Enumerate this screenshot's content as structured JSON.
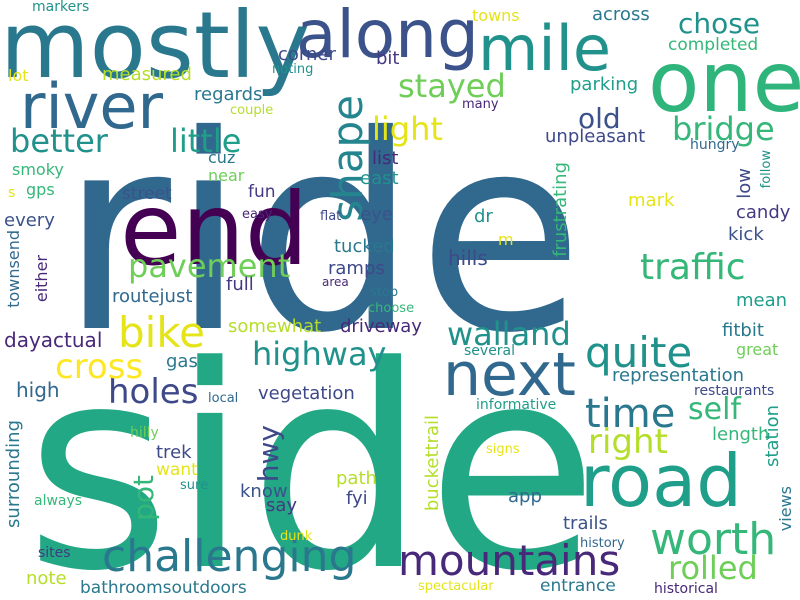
{
  "words": [
    {
      "text": "ride",
      "color": "#31688e"
    },
    {
      "text": "side",
      "color": "#22a884"
    },
    {
      "text": "end",
      "color": "#440154"
    },
    {
      "text": "mostly",
      "color": "#2a788e"
    },
    {
      "text": "one",
      "color": "#2fb47c"
    },
    {
      "text": "along",
      "color": "#3b528b"
    },
    {
      "text": "mile",
      "color": "#21918c"
    },
    {
      "text": "river",
      "color": "#31688e"
    },
    {
      "text": "road",
      "color": "#1f9e89"
    },
    {
      "text": "next",
      "color": "#31688e"
    },
    {
      "text": "challenging",
      "color": "#2a788e"
    },
    {
      "text": "mountains",
      "color": "#482878"
    },
    {
      "text": "worth",
      "color": "#35b779"
    },
    {
      "text": "bike",
      "color": "#e5e419"
    },
    {
      "text": "quite",
      "color": "#21918c"
    },
    {
      "text": "shape",
      "color": "#25858e"
    },
    {
      "text": "time",
      "color": "#2a788e"
    },
    {
      "text": "traffic",
      "color": "#35b779"
    },
    {
      "text": "pavement",
      "color": "#6ece58"
    },
    {
      "text": "highway",
      "color": "#21918c"
    },
    {
      "text": "walland",
      "color": "#21918c"
    },
    {
      "text": "holes",
      "color": "#3e4989"
    },
    {
      "text": "cross",
      "color": "#fde725"
    },
    {
      "text": "right",
      "color": "#b5de2b"
    },
    {
      "text": "self",
      "color": "#35b779"
    },
    {
      "text": "rolled",
      "color": "#6ece58"
    },
    {
      "text": "better",
      "color": "#21918c"
    },
    {
      "text": "little",
      "color": "#1f9e89"
    },
    {
      "text": "stayed",
      "color": "#6ece58"
    },
    {
      "text": "light",
      "color": "#e5e419"
    },
    {
      "text": "bridge",
      "color": "#35b779"
    },
    {
      "text": "chose",
      "color": "#21918c"
    },
    {
      "text": "old",
      "color": "#3b528b"
    },
    {
      "text": "hwy",
      "color": "#3e4989"
    },
    {
      "text": "pot",
      "color": "#35b779"
    },
    {
      "text": "measured",
      "color": "#b5de2b"
    },
    {
      "text": "regards",
      "color": "#2a788e"
    },
    {
      "text": "corner",
      "color": "#3e4989"
    },
    {
      "text": "bit",
      "color": "#443983"
    },
    {
      "text": "towns",
      "color": "#e5e419"
    },
    {
      "text": "across",
      "color": "#2a788e"
    },
    {
      "text": "completed",
      "color": "#35b779"
    },
    {
      "text": "parking",
      "color": "#1f9e89"
    },
    {
      "text": "many",
      "color": "#482878"
    },
    {
      "text": "unpleasant",
      "color": "#3e4989"
    },
    {
      "text": "hungry",
      "color": "#31688e"
    },
    {
      "text": "couple",
      "color": "#b5de2b"
    },
    {
      "text": "noting",
      "color": "#21918c"
    },
    {
      "text": "markers",
      "color": "#21918c"
    },
    {
      "text": "lot",
      "color": "#e5e419"
    },
    {
      "text": "smoky",
      "color": "#35b779"
    },
    {
      "text": "gps",
      "color": "#35b779"
    },
    {
      "text": "s",
      "color": "#e5e419"
    },
    {
      "text": "every",
      "color": "#3b528b"
    },
    {
      "text": "townsend",
      "color": "#31688e"
    },
    {
      "text": "either",
      "color": "#482878"
    },
    {
      "text": "street",
      "color": "#3b528b"
    },
    {
      "text": "cuz",
      "color": "#2a788e"
    },
    {
      "text": "near",
      "color": "#6ece58"
    },
    {
      "text": "fun",
      "color": "#443983"
    },
    {
      "text": "easy",
      "color": "#482878"
    },
    {
      "text": "flat",
      "color": "#3e4989"
    },
    {
      "text": "eye",
      "color": "#3b528b"
    },
    {
      "text": "list",
      "color": "#482878"
    },
    {
      "text": "east",
      "color": "#21918c"
    },
    {
      "text": "frustrating",
      "color": "#35b779"
    },
    {
      "text": "mark",
      "color": "#e5e419"
    },
    {
      "text": "low",
      "color": "#3e4989"
    },
    {
      "text": "follow",
      "color": "#21918c"
    },
    {
      "text": "candy",
      "color": "#443983"
    },
    {
      "text": "kick",
      "color": "#3b528b"
    },
    {
      "text": "dr",
      "color": "#21918c"
    },
    {
      "text": "m",
      "color": "#e5e419"
    },
    {
      "text": "hills",
      "color": "#3e4989"
    },
    {
      "text": "tucked",
      "color": "#2a788e"
    },
    {
      "text": "ramps",
      "color": "#3e4989"
    },
    {
      "text": "routejust",
      "color": "#31688e"
    },
    {
      "text": "full",
      "color": "#443983"
    },
    {
      "text": "area",
      "color": "#482878"
    },
    {
      "text": "stop",
      "color": "#2a788e"
    },
    {
      "text": "choose",
      "color": "#35b779"
    },
    {
      "text": "mean",
      "color": "#1f9e89"
    },
    {
      "text": "fitbit",
      "color": "#2a788e"
    },
    {
      "text": "great",
      "color": "#6ece58"
    },
    {
      "text": "somewhat",
      "color": "#b5de2b"
    },
    {
      "text": "driveway",
      "color": "#482878"
    },
    {
      "text": "dayactual",
      "color": "#482878"
    },
    {
      "text": "gas",
      "color": "#2a788e"
    },
    {
      "text": "several",
      "color": "#21918c"
    },
    {
      "text": "representation",
      "color": "#2a788e"
    },
    {
      "text": "restaurants",
      "color": "#3e4989"
    },
    {
      "text": "high",
      "color": "#31688e"
    },
    {
      "text": "vegetation",
      "color": "#3e4989"
    },
    {
      "text": "local",
      "color": "#31688e"
    },
    {
      "text": "informative",
      "color": "#1f9e89"
    },
    {
      "text": "buckettrail",
      "color": "#b5de2b"
    },
    {
      "text": "length",
      "color": "#35b779"
    },
    {
      "text": "station",
      "color": "#1f9e89"
    },
    {
      "text": "surrounding",
      "color": "#2a788e"
    },
    {
      "text": "hilly",
      "color": "#6ece58"
    },
    {
      "text": "trek",
      "color": "#3e4989"
    },
    {
      "text": "want",
      "color": "#e5e419"
    },
    {
      "text": "sure",
      "color": "#21918c"
    },
    {
      "text": "signs",
      "color": "#e5e419"
    },
    {
      "text": "always",
      "color": "#35b779"
    },
    {
      "text": "know",
      "color": "#3b528b"
    },
    {
      "text": "say",
      "color": "#443983"
    },
    {
      "text": "path",
      "color": "#b5de2b"
    },
    {
      "text": "fyi",
      "color": "#3e4989"
    },
    {
      "text": "app",
      "color": "#31688e"
    },
    {
      "text": "views",
      "color": "#2a788e"
    },
    {
      "text": "dunk",
      "color": "#e5e419"
    },
    {
      "text": "trails",
      "color": "#3b528b"
    },
    {
      "text": "history",
      "color": "#31688e"
    },
    {
      "text": "sites",
      "color": "#443983"
    },
    {
      "text": "note",
      "color": "#b5de2b"
    },
    {
      "text": "bathroomsoutdoors",
      "color": "#2a788e"
    },
    {
      "text": "spectacular",
      "color": "#e5e419"
    },
    {
      "text": "entrance",
      "color": "#2a788e"
    },
    {
      "text": "historical",
      "color": "#482878"
    }
  ]
}
